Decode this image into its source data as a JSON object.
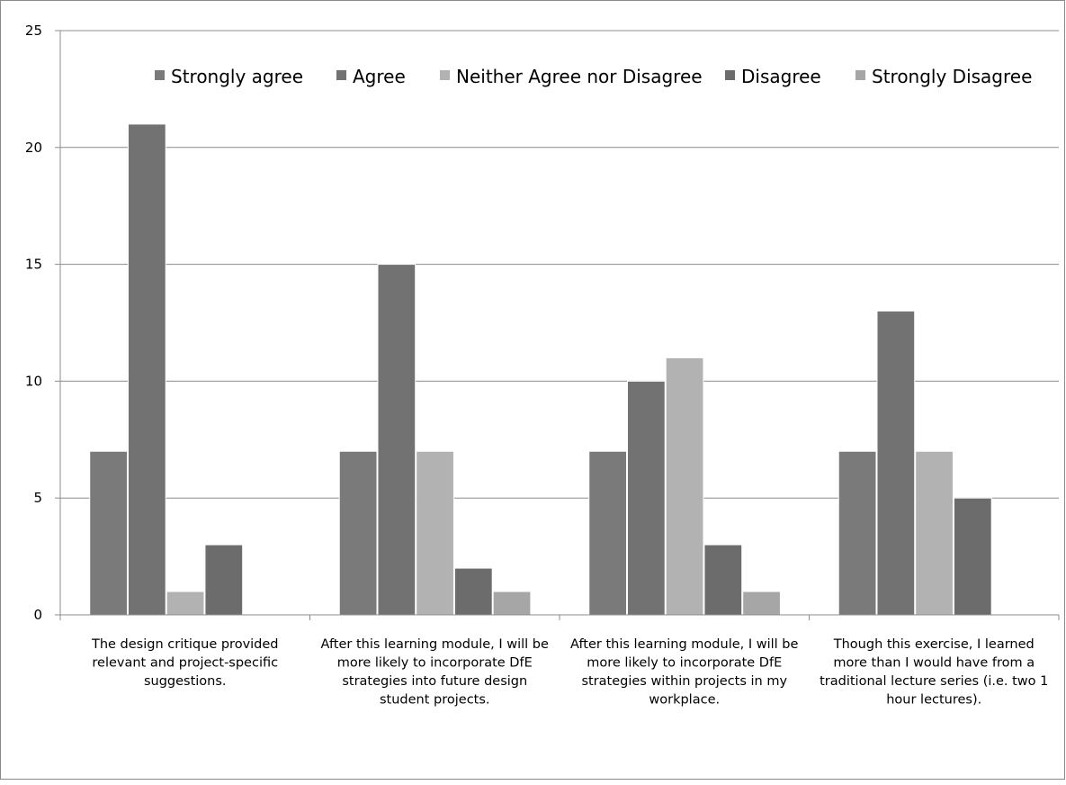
{
  "chart_data": {
    "type": "bar",
    "title": "",
    "xlabel": "",
    "ylabel": "",
    "ylim": [
      0,
      25
    ],
    "yticks": [
      0,
      5,
      10,
      15,
      20,
      25
    ],
    "grid": true,
    "legend_position": "top",
    "categories": [
      "The design critique provided relevant and project-specific suggestions.",
      "After this learning module, I will be more likely to incorporate DfE strategies into future design student projects.",
      "After this learning module, I will be more likely to incorporate DfE strategies within projects in my workplace.",
      "Though this exercise, I learned more than I would have from a traditional lecture series (i.e. two 1 hour lectures)."
    ],
    "category_lines": [
      [
        "The design critique provided",
        "relevant and project-specific",
        "suggestions."
      ],
      [
        "After this learning module, I will be",
        "more likely to incorporate DfE",
        "strategies into future design",
        "student projects."
      ],
      [
        "After this learning module, I will be",
        "more likely to incorporate DfE",
        "strategies within projects in my",
        "workplace."
      ],
      [
        "Though this exercise, I learned",
        "more than I would have from a",
        "traditional lecture series (i.e. two 1",
        "hour lectures)."
      ]
    ],
    "series": [
      {
        "name": "Strongly agree",
        "color": "#7a7a7a",
        "values": [
          7,
          7,
          7,
          7
        ]
      },
      {
        "name": "Agree",
        "color": "#727272",
        "values": [
          21,
          15,
          10,
          13
        ]
      },
      {
        "name": "Neither Agree nor Disagree",
        "color": "#b2b2b2",
        "values": [
          1,
          7,
          11,
          7
        ]
      },
      {
        "name": "Disagree",
        "color": "#6c6c6c",
        "values": [
          3,
          2,
          3,
          5
        ]
      },
      {
        "name": "Strongly Disagree",
        "color": "#a6a6a6",
        "values": [
          0,
          1,
          1,
          0
        ]
      }
    ]
  }
}
